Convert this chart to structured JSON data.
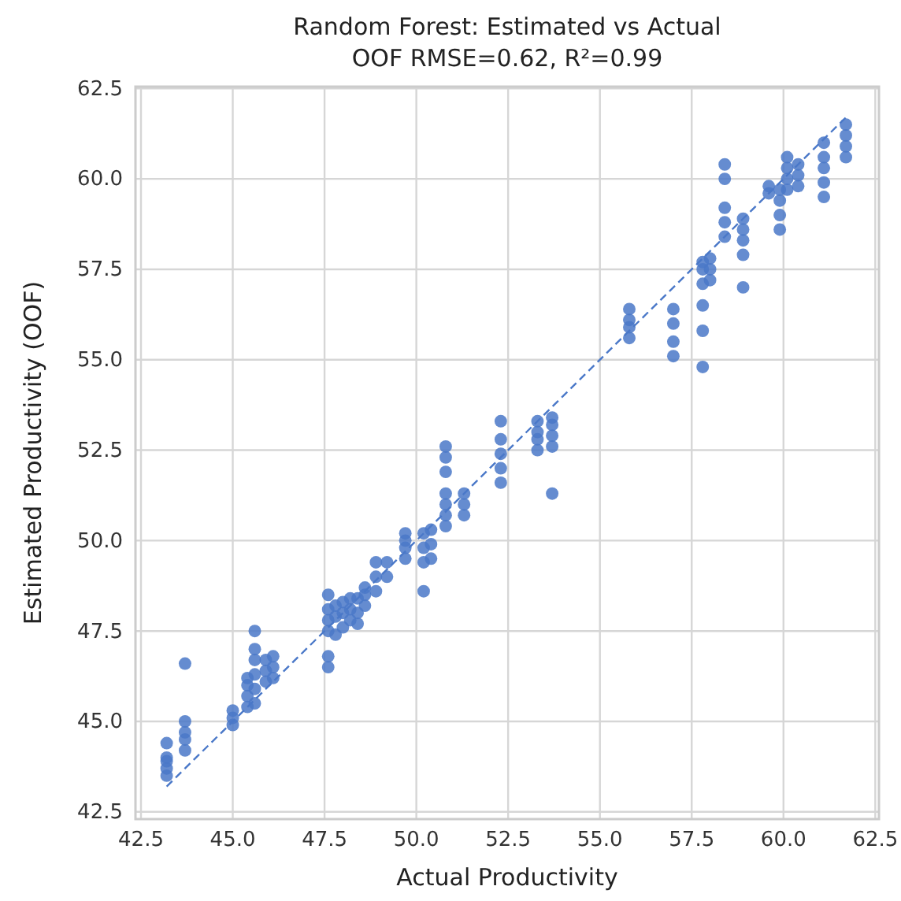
{
  "chart_data": {
    "type": "scatter",
    "title": "Random Forest: Estimated vs Actual",
    "subtitle": "OOF RMSE=0.62, R²=0.99",
    "xlabel": "Actual Productivity",
    "ylabel": "Estimated Productivity (OOF)",
    "xlim": [
      42.35,
      62.6
    ],
    "ylim": [
      42.3,
      62.55
    ],
    "xticks": [
      42.5,
      {
        "value": 45,
        "label": "45.0"
      },
      47.5,
      {
        "value": 50,
        "label": "50.0"
      },
      52.5,
      {
        "value": 55,
        "label": "55.0"
      },
      57.5,
      {
        "value": 60,
        "label": "60.0"
      },
      62.5
    ],
    "yticks": [
      42.5,
      {
        "value": 45,
        "label": "45.0"
      },
      47.5,
      {
        "value": 50,
        "label": "50.0"
      },
      52.5,
      {
        "value": 55,
        "label": "55.0"
      },
      57.5,
      {
        "value": 60,
        "label": "60.0"
      },
      62.5
    ],
    "grid": true,
    "series": [
      {
        "color": "#4a78c8",
        "marker": "circle",
        "x": [
          43.2,
          43.2,
          43.2,
          43.2,
          43.2,
          43.7,
          43.7,
          43.7,
          43.7,
          43.7,
          45.0,
          45.0,
          45.0,
          45.4,
          45.4,
          45.4,
          45.4,
          45.6,
          45.6,
          45.6,
          45.6,
          45.6,
          45.6,
          45.9,
          45.9,
          45.9,
          46.1,
          46.1,
          46.1,
          47.6,
          47.6,
          47.6,
          47.6,
          47.6,
          47.6,
          47.8,
          47.8,
          47.8,
          48.0,
          48.0,
          48.0,
          48.2,
          48.2,
          48.2,
          48.4,
          48.4,
          48.4,
          48.6,
          48.6,
          48.6,
          48.9,
          48.9,
          48.9,
          49.2,
          49.2,
          49.7,
          49.7,
          49.7,
          49.7,
          50.2,
          50.2,
          50.2,
          50.2,
          50.4,
          50.4,
          50.4,
          50.8,
          50.8,
          50.8,
          50.8,
          50.8,
          50.8,
          50.8,
          51.3,
          51.3,
          51.3,
          52.3,
          52.3,
          52.3,
          52.3,
          52.3,
          53.3,
          53.3,
          53.3,
          53.3,
          53.7,
          53.7,
          53.7,
          53.7,
          53.7,
          55.8,
          55.8,
          55.8,
          55.8,
          57.0,
          57.0,
          57.0,
          57.0,
          57.8,
          57.8,
          57.8,
          57.8,
          57.8,
          57.8,
          58.0,
          58.0,
          58.0,
          58.4,
          58.4,
          58.4,
          58.4,
          58.4,
          58.9,
          58.9,
          58.9,
          58.9,
          58.9,
          59.6,
          59.6,
          59.9,
          59.9,
          59.9,
          59.9,
          60.1,
          60.1,
          60.1,
          60.1,
          60.4,
          60.4,
          60.4,
          61.1,
          61.1,
          61.1,
          61.1,
          61.1,
          61.7,
          61.7,
          61.7,
          61.7
        ],
        "values": [
          43.5,
          43.7,
          43.9,
          44.0,
          44.4,
          44.2,
          44.5,
          44.7,
          45.0,
          46.6,
          44.9,
          45.1,
          45.3,
          45.4,
          45.7,
          46.0,
          46.2,
          45.5,
          45.9,
          46.3,
          46.7,
          47.0,
          47.5,
          46.1,
          46.4,
          46.7,
          46.2,
          46.5,
          46.8,
          46.5,
          46.8,
          47.5,
          47.8,
          48.1,
          48.5,
          47.4,
          47.9,
          48.2,
          47.6,
          48.0,
          48.3,
          47.8,
          48.1,
          48.4,
          47.7,
          48.0,
          48.4,
          48.2,
          48.5,
          48.7,
          48.6,
          49.0,
          49.4,
          49.0,
          49.4,
          49.5,
          49.8,
          50.0,
          50.2,
          48.6,
          49.4,
          49.8,
          50.2,
          49.5,
          49.9,
          50.3,
          50.4,
          50.7,
          51.0,
          51.3,
          51.9,
          52.3,
          52.6,
          50.7,
          51.0,
          51.3,
          51.6,
          52.0,
          52.4,
          52.8,
          53.3,
          52.5,
          52.8,
          53.0,
          53.3,
          51.3,
          52.6,
          52.9,
          53.2,
          53.4,
          55.6,
          55.9,
          56.1,
          56.4,
          55.1,
          55.5,
          56.0,
          56.4,
          54.8,
          55.8,
          56.5,
          57.1,
          57.5,
          57.7,
          57.2,
          57.5,
          57.8,
          58.4,
          58.8,
          59.2,
          60.0,
          60.4,
          57.0,
          57.9,
          58.3,
          58.6,
          58.9,
          59.6,
          59.8,
          58.6,
          59.0,
          59.4,
          59.7,
          59.7,
          60.0,
          60.3,
          60.6,
          59.8,
          60.1,
          60.4,
          59.5,
          59.9,
          60.3,
          60.6,
          61.0,
          60.6,
          60.9,
          61.2,
          61.5
        ]
      },
      {
        "type": "line",
        "color": "#4a78c8",
        "line_style": "dashed",
        "x": [
          43.2,
          61.7
        ],
        "values": [
          43.2,
          61.7
        ]
      }
    ]
  }
}
